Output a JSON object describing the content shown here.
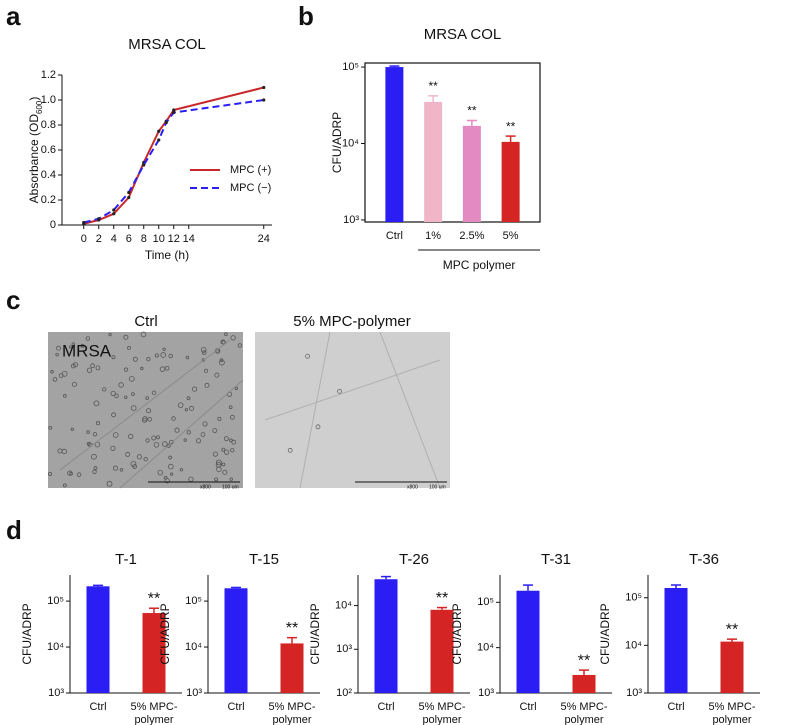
{
  "panel_labels": [
    "a",
    "b",
    "c",
    "d"
  ],
  "chart_data": [
    {
      "type": "line",
      "title": "MRSA COL",
      "x_label": "Time (h)",
      "y_label": [
        "Absorbance (OD",
        "600",
        ")"
      ],
      "x": [
        0,
        2,
        4,
        6,
        8,
        10,
        11,
        12,
        24
      ],
      "series": [
        {
          "name": "MPC (+)",
          "color": "#c8282a",
          "line_style": "solid",
          "values": [
            0.01,
            0.04,
            0.09,
            0.22,
            0.5,
            0.75,
            0.83,
            0.92,
            1.1
          ]
        },
        {
          "name": "MPC (−)",
          "color": "#2b1ef5",
          "line_style": "dashed",
          "values": [
            0.02,
            0.05,
            0.12,
            0.26,
            0.48,
            0.68,
            0.82,
            0.9,
            1.0
          ]
        }
      ],
      "xlim": [
        -2.9,
        25.1
      ],
      "ylim": [
        0,
        1.2
      ],
      "xticks": [
        0,
        2,
        4,
        6,
        8,
        10,
        12,
        14,
        24
      ],
      "yticks": [
        0,
        0.2,
        0.4,
        0.6,
        0.8,
        {
          "value": 1,
          "label": "1.0"
        },
        1.2
      ],
      "legend": "right"
    },
    {
      "type": "bar",
      "log_y": true,
      "title": "MRSA COL",
      "y_label": "CFU/ADRP",
      "x_group_label": "MPC polymer",
      "categories": [
        "Ctrl",
        "1%",
        "2.5%",
        "5%"
      ],
      "values": [
        100000,
        35000,
        17000,
        10500
      ],
      "errors": [
        3000,
        7000,
        3000,
        2000
      ],
      "colors": [
        "#2b1ef5",
        "#f0b6c8",
        "#e48ac2",
        "#d42424"
      ],
      "significance": [
        null,
        "**",
        "**",
        "**"
      ],
      "ylim": [
        940,
        113000
      ],
      "yticks": [
        {
          "value": 1000,
          "label": "10³"
        },
        {
          "value": 10000,
          "label": "10⁴"
        },
        {
          "value": 100000,
          "label": "10⁵"
        }
      ]
    },
    {
      "type": "bar",
      "log_y": true,
      "title": "T-1",
      "y_label": "CFU/ADRP",
      "categories": [
        "Ctrl",
        "5% MPC-polymer"
      ],
      "values": [
        210000,
        55000
      ],
      "errors": [
        10000,
        15000
      ],
      "colors": [
        "#2b1ef5",
        "#d42424"
      ],
      "significance": [
        null,
        "**"
      ],
      "ylim": [
        1000,
        370000
      ],
      "yticks": [
        {
          "value": 1000,
          "label": "10³"
        },
        {
          "value": 10000,
          "label": "10⁴"
        },
        {
          "value": 100000,
          "label": "10⁵"
        }
      ]
    },
    {
      "type": "bar",
      "log_y": true,
      "title": "T-15",
      "y_label": "CFU/ADRP",
      "categories": [
        "Ctrl",
        "5% MPC-polymer"
      ],
      "values": [
        190000,
        12000
      ],
      "errors": [
        8000,
        4000
      ],
      "colors": [
        "#2b1ef5",
        "#d42424"
      ],
      "significance": [
        null,
        "**"
      ],
      "ylim": [
        1000,
        370000
      ],
      "yticks": [
        {
          "value": 1000,
          "label": "10³"
        },
        {
          "value": 10000,
          "label": "10⁴"
        },
        {
          "value": 100000,
          "label": "10⁵"
        }
      ]
    },
    {
      "type": "bar",
      "log_y": true,
      "title": "T-26",
      "y_label": "CFU/ADRP",
      "categories": [
        "Ctrl",
        "5% MPC-polymer"
      ],
      "values": [
        40000,
        8000
      ],
      "errors": [
        6000,
        1000
      ],
      "colors": [
        "#2b1ef5",
        "#d42424"
      ],
      "significance": [
        null,
        "**"
      ],
      "ylim": [
        100,
        50000
      ],
      "yticks": [
        {
          "value": 100,
          "label": "10²"
        },
        {
          "value": 1000,
          "label": "10³"
        },
        {
          "value": 10000,
          "label": "10⁴"
        }
      ]
    },
    {
      "type": "bar",
      "log_y": true,
      "title": "T-31",
      "y_label": "CFU/ADRP",
      "categories": [
        "Ctrl",
        "5% MPC-polymer"
      ],
      "values": [
        180000,
        2500
      ],
      "errors": [
        60000,
        700
      ],
      "colors": [
        "#2b1ef5",
        "#d42424"
      ],
      "significance": [
        null,
        "**"
      ],
      "ylim": [
        1000,
        400000
      ],
      "yticks": [
        {
          "value": 1000,
          "label": "10³"
        },
        {
          "value": 10000,
          "label": "10⁴"
        },
        {
          "value": 100000,
          "label": "10⁵"
        }
      ]
    },
    {
      "type": "bar",
      "log_y": true,
      "title": "T-36",
      "y_label": "CFU/ADRP",
      "categories": [
        "Ctrl",
        "5% MPC-polymer"
      ],
      "values": [
        160000,
        12000
      ],
      "errors": [
        25000,
        1500
      ],
      "colors": [
        "#2b1ef5",
        "#d42424"
      ],
      "significance": [
        null,
        "**"
      ],
      "ylim": [
        1000,
        300000
      ],
      "yticks": [
        {
          "value": 1000,
          "label": "10³"
        },
        {
          "value": 10000,
          "label": "10⁴"
        },
        {
          "value": 100000,
          "label": "10⁵"
        }
      ]
    }
  ],
  "images": [
    {
      "title": "Ctrl",
      "label": "MRSA",
      "magnification": "x800",
      "scale": "100 um"
    },
    {
      "title": "5% MPC-polymer",
      "magnification": "x800",
      "scale": "100 um"
    }
  ]
}
